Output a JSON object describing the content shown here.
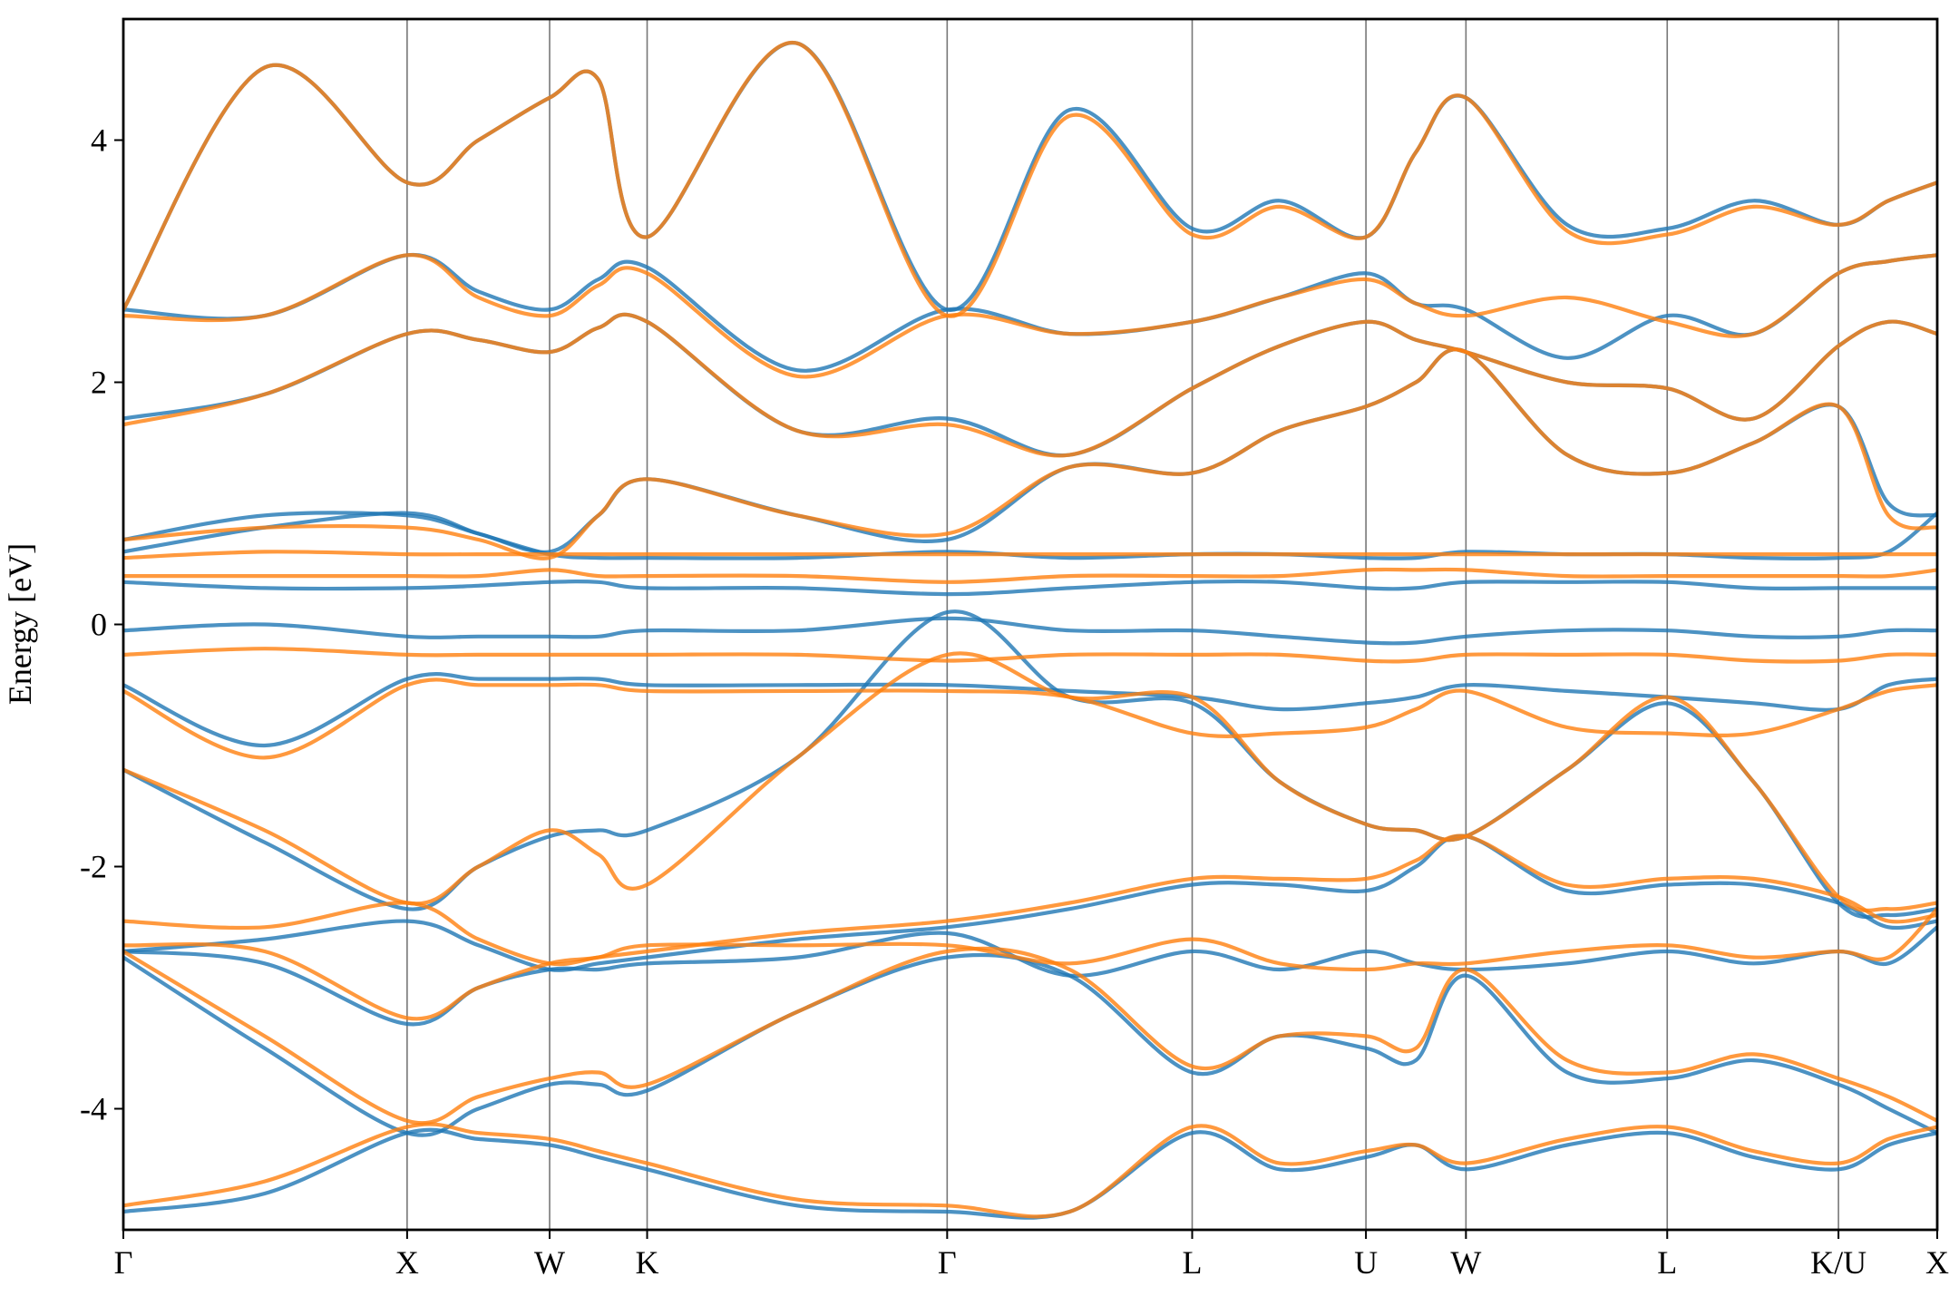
{
  "chart_data": {
    "type": "line",
    "y_label": "Energy [eV]",
    "x": [
      0,
      1.13,
      2.27,
      2.84,
      3.41,
      3.8,
      4.19,
      5.39,
      6.59,
      7.57,
      8.55,
      9.25,
      9.94,
      10.34,
      10.74,
      11.55,
      12.35,
      13.04,
      13.72,
      14.12,
      14.51
    ],
    "xlim": [
      0,
      14.51
    ],
    "ylim": [
      -5,
      5
    ],
    "xticks": [
      {
        "value": 0,
        "label": "Γ"
      },
      {
        "value": 2.27,
        "label": "X"
      },
      {
        "value": 3.41,
        "label": "W"
      },
      {
        "value": 4.19,
        "label": "K"
      },
      {
        "value": 6.59,
        "label": "Γ"
      },
      {
        "value": 8.55,
        "label": "L"
      },
      {
        "value": 9.94,
        "label": "U"
      },
      {
        "value": 10.74,
        "label": "W"
      },
      {
        "value": 12.35,
        "label": "L"
      },
      {
        "value": 13.72,
        "label": "K/U"
      },
      {
        "value": 14.51,
        "label": "X"
      }
    ],
    "yticks": [
      -4,
      -2,
      0,
      2,
      4
    ],
    "vertical_grid": true,
    "series": [
      {
        "color": "#1f77b4",
        "values": [
          2.6,
          4.6,
          3.65,
          4.0,
          4.35,
          4.5,
          3.2,
          4.8,
          2.6,
          4.25,
          3.27,
          3.5,
          3.2,
          3.9,
          4.35,
          3.3,
          3.27,
          3.5,
          3.3,
          3.5,
          3.65
        ]
      },
      {
        "color": "#1f77b4",
        "values": [
          2.6,
          2.55,
          3.05,
          2.75,
          2.6,
          2.85,
          2.95,
          2.1,
          2.6,
          2.4,
          2.5,
          2.7,
          2.9,
          2.65,
          2.6,
          2.2,
          2.55,
          2.4,
          2.9,
          3.0,
          3.05
        ]
      },
      {
        "color": "#1f77b4",
        "values": [
          1.7,
          1.9,
          2.4,
          2.35,
          2.25,
          2.45,
          2.5,
          1.6,
          1.7,
          1.4,
          1.95,
          2.3,
          2.5,
          2.35,
          2.25,
          2.0,
          1.95,
          1.7,
          2.3,
          2.5,
          2.4
        ]
      },
      {
        "color": "#1f77b4",
        "values": [
          0.7,
          0.9,
          0.9,
          0.75,
          0.6,
          0.9,
          1.2,
          0.9,
          0.7,
          1.3,
          1.25,
          1.6,
          1.8,
          2.0,
          2.25,
          1.4,
          1.25,
          1.5,
          1.8,
          1.0,
          0.9
        ]
      },
      {
        "color": "#1f77b4",
        "values": [
          0.6,
          0.8,
          0.92,
          0.75,
          0.58,
          0.55,
          0.55,
          0.55,
          0.6,
          0.55,
          0.58,
          0.58,
          0.55,
          0.55,
          0.6,
          0.58,
          0.58,
          0.55,
          0.55,
          0.6,
          0.92
        ]
      },
      {
        "color": "#1f77b4",
        "values": [
          0.35,
          0.3,
          0.3,
          0.32,
          0.35,
          0.35,
          0.3,
          0.3,
          0.25,
          0.3,
          0.35,
          0.35,
          0.3,
          0.3,
          0.35,
          0.35,
          0.35,
          0.3,
          0.3,
          0.3,
          0.3
        ]
      },
      {
        "color": "#1f77b4",
        "values": [
          -0.05,
          0.0,
          -0.1,
          -0.1,
          -0.1,
          -0.1,
          -0.05,
          -0.05,
          0.05,
          -0.05,
          -0.05,
          -0.1,
          -0.15,
          -0.15,
          -0.1,
          -0.05,
          -0.05,
          -0.1,
          -0.1,
          -0.05,
          -0.05
        ]
      },
      {
        "color": "#1f77b4",
        "values": [
          -0.5,
          -1.0,
          -0.45,
          -0.45,
          -0.45,
          -0.45,
          -0.5,
          -0.5,
          -0.5,
          -0.55,
          -0.6,
          -0.7,
          -0.65,
          -0.6,
          -0.5,
          -0.55,
          -0.6,
          -0.65,
          -0.7,
          -0.5,
          -0.45
        ]
      },
      {
        "color": "#1f77b4",
        "values": [
          -1.2,
          -1.8,
          -2.35,
          -2.0,
          -1.75,
          -1.7,
          -1.7,
          -1.1,
          0.1,
          -0.6,
          -0.65,
          -1.3,
          -1.65,
          -1.7,
          -1.75,
          -1.2,
          -0.65,
          -1.3,
          -2.3,
          -2.4,
          -2.35
        ]
      },
      {
        "color": "#1f77b4",
        "values": [
          -2.7,
          -2.6,
          -2.45,
          -2.65,
          -2.85,
          -2.8,
          -2.75,
          -2.6,
          -2.5,
          -2.35,
          -2.15,
          -2.15,
          -2.2,
          -2.0,
          -1.75,
          -2.2,
          -2.15,
          -2.15,
          -2.3,
          -2.5,
          -2.45
        ]
      },
      {
        "color": "#1f77b4",
        "values": [
          -2.7,
          -2.8,
          -3.3,
          -3.0,
          -2.85,
          -2.85,
          -2.8,
          -2.75,
          -2.55,
          -2.9,
          -2.7,
          -2.85,
          -2.7,
          -2.8,
          -2.85,
          -2.8,
          -2.7,
          -2.8,
          -2.7,
          -2.8,
          -2.5
        ]
      },
      {
        "color": "#1f77b4",
        "values": [
          -2.75,
          -3.5,
          -4.2,
          -4.0,
          -3.8,
          -3.8,
          -3.85,
          -3.2,
          -2.75,
          -2.9,
          -3.7,
          -3.4,
          -3.5,
          -3.6,
          -2.9,
          -3.7,
          -3.75,
          -3.6,
          -3.8,
          -4.0,
          -4.2
        ]
      },
      {
        "color": "#1f77b4",
        "values": [
          -4.85,
          -4.7,
          -4.2,
          -4.25,
          -4.3,
          -4.4,
          -4.5,
          -4.8,
          -4.85,
          -4.85,
          -4.2,
          -4.5,
          -4.4,
          -4.3,
          -4.5,
          -4.3,
          -4.2,
          -4.4,
          -4.5,
          -4.3,
          -4.2
        ]
      },
      {
        "color": "#ff7f0e",
        "values": [
          2.6,
          4.6,
          3.65,
          4.0,
          4.35,
          4.5,
          3.2,
          4.8,
          2.55,
          4.2,
          3.22,
          3.45,
          3.2,
          3.9,
          4.35,
          3.25,
          3.22,
          3.45,
          3.3,
          3.5,
          3.65
        ]
      },
      {
        "color": "#ff7f0e",
        "values": [
          2.55,
          2.55,
          3.05,
          2.7,
          2.55,
          2.8,
          2.9,
          2.05,
          2.55,
          2.4,
          2.5,
          2.7,
          2.85,
          2.65,
          2.55,
          2.7,
          2.5,
          2.4,
          2.9,
          3.0,
          3.05
        ]
      },
      {
        "color": "#ff7f0e",
        "values": [
          1.65,
          1.9,
          2.4,
          2.35,
          2.25,
          2.45,
          2.5,
          1.6,
          1.65,
          1.4,
          1.95,
          2.3,
          2.5,
          2.35,
          2.25,
          2.0,
          1.95,
          1.7,
          2.3,
          2.5,
          2.4
        ]
      },
      {
        "color": "#ff7f0e",
        "values": [
          0.7,
          0.8,
          0.8,
          0.7,
          0.55,
          0.9,
          1.2,
          0.9,
          0.75,
          1.3,
          1.25,
          1.6,
          1.8,
          2.0,
          2.25,
          1.4,
          1.25,
          1.5,
          1.8,
          0.9,
          0.8
        ]
      },
      {
        "color": "#ff7f0e",
        "values": [
          0.55,
          0.6,
          0.58,
          0.58,
          0.58,
          0.58,
          0.58,
          0.58,
          0.58,
          0.58,
          0.58,
          0.58,
          0.58,
          0.58,
          0.58,
          0.58,
          0.58,
          0.58,
          0.58,
          0.58,
          0.58
        ]
      },
      {
        "color": "#ff7f0e",
        "values": [
          0.4,
          0.4,
          0.4,
          0.4,
          0.45,
          0.4,
          0.4,
          0.4,
          0.35,
          0.4,
          0.4,
          0.4,
          0.45,
          0.45,
          0.45,
          0.4,
          0.4,
          0.4,
          0.4,
          0.4,
          0.45
        ]
      },
      {
        "color": "#ff7f0e",
        "values": [
          -0.25,
          -0.2,
          -0.25,
          -0.25,
          -0.25,
          -0.25,
          -0.25,
          -0.25,
          -0.3,
          -0.25,
          -0.25,
          -0.25,
          -0.3,
          -0.3,
          -0.25,
          -0.25,
          -0.25,
          -0.3,
          -0.3,
          -0.25,
          -0.25
        ]
      },
      {
        "color": "#ff7f0e",
        "values": [
          -0.55,
          -1.1,
          -0.5,
          -0.5,
          -0.5,
          -0.5,
          -0.55,
          -0.55,
          -0.55,
          -0.6,
          -0.9,
          -0.9,
          -0.85,
          -0.7,
          -0.55,
          -0.85,
          -0.9,
          -0.9,
          -0.7,
          -0.55,
          -0.5
        ]
      },
      {
        "color": "#ff7f0e",
        "values": [
          -1.2,
          -1.7,
          -2.3,
          -2.0,
          -1.7,
          -1.9,
          -2.15,
          -1.1,
          -0.25,
          -0.6,
          -0.6,
          -1.3,
          -1.65,
          -1.7,
          -1.75,
          -1.2,
          -0.6,
          -1.3,
          -2.25,
          -2.35,
          -2.3
        ]
      },
      {
        "color": "#ff7f0e",
        "values": [
          -2.45,
          -2.5,
          -2.3,
          -2.6,
          -2.8,
          -2.75,
          -2.7,
          -2.55,
          -2.45,
          -2.3,
          -2.1,
          -2.1,
          -2.1,
          -1.95,
          -1.75,
          -2.15,
          -2.1,
          -2.1,
          -2.25,
          -2.45,
          -2.4
        ]
      },
      {
        "color": "#ff7f0e",
        "values": [
          -2.65,
          -2.7,
          -3.25,
          -3.0,
          -2.8,
          -2.75,
          -2.65,
          -2.65,
          -2.65,
          -2.8,
          -2.6,
          -2.8,
          -2.85,
          -2.8,
          -2.8,
          -2.7,
          -2.65,
          -2.75,
          -2.7,
          -2.75,
          -2.35
        ]
      },
      {
        "color": "#ff7f0e",
        "values": [
          -2.7,
          -3.4,
          -4.1,
          -3.9,
          -3.75,
          -3.7,
          -3.8,
          -3.2,
          -2.7,
          -2.85,
          -3.65,
          -3.4,
          -3.4,
          -3.5,
          -2.85,
          -3.6,
          -3.7,
          -3.55,
          -3.75,
          -3.9,
          -4.1
        ]
      },
      {
        "color": "#ff7f0e",
        "values": [
          -4.8,
          -4.6,
          -4.15,
          -4.2,
          -4.25,
          -4.35,
          -4.45,
          -4.75,
          -4.8,
          -4.85,
          -4.15,
          -4.45,
          -4.35,
          -4.3,
          -4.45,
          -4.25,
          -4.15,
          -4.35,
          -4.45,
          -4.25,
          -4.15
        ]
      }
    ]
  }
}
